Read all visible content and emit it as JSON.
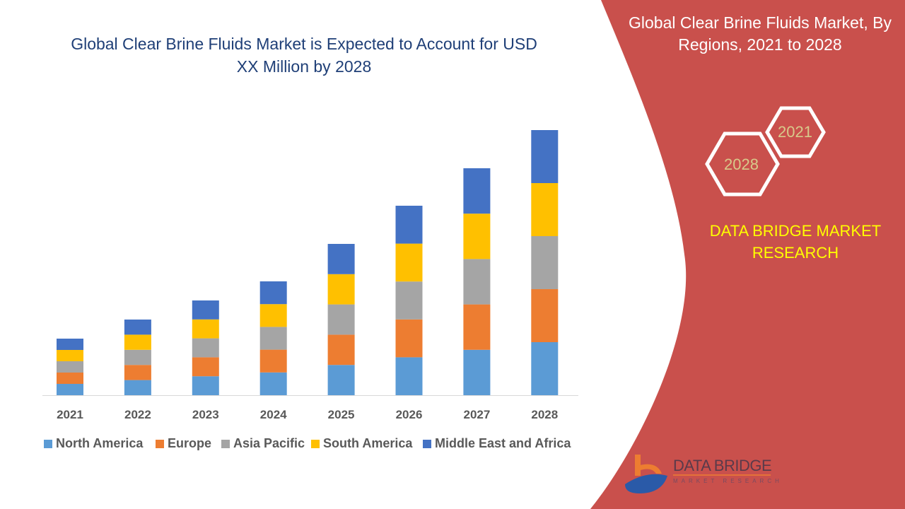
{
  "title": "Global Clear Brine Fluids Market is Expected to Account for USD XX Million by 2028",
  "panel": {
    "title": "Global Clear Brine Fluids Market, By Regions, 2021 to 2028",
    "hex_year_1": "2021",
    "hex_year_2": "2028",
    "brand": "DATA BRIDGE MARKET RESEARCH",
    "logo_text": "DATA BRIDGE",
    "logo_subtext": "MARKET RESEARCH",
    "color": "#C9504C"
  },
  "chart_data": {
    "type": "bar",
    "stacked": true,
    "categories": [
      "2021",
      "2022",
      "2023",
      "2024",
      "2025",
      "2026",
      "2027",
      "2028"
    ],
    "series": [
      {
        "name": "North America",
        "color": "#5B9BD5",
        "values": [
          16,
          21.4,
          26.8,
          32.2,
          42.8,
          53.6,
          64.2,
          75
        ]
      },
      {
        "name": "Europe",
        "color": "#ED7D31",
        "values": [
          16,
          21.4,
          26.8,
          32.2,
          42.8,
          53.6,
          64.2,
          75
        ]
      },
      {
        "name": "Asia Pacific",
        "color": "#A5A5A5",
        "values": [
          16,
          21.4,
          26.8,
          32.2,
          42.8,
          53.6,
          64.2,
          75
        ]
      },
      {
        "name": "South America",
        "color": "#FFC000",
        "values": [
          16,
          21.4,
          26.8,
          32.2,
          42.8,
          53.6,
          64.2,
          75
        ]
      },
      {
        "name": "Middle East and Africa",
        "color": "#4472C4",
        "values": [
          16,
          21.4,
          26.8,
          32.2,
          42.8,
          53.6,
          64.2,
          75
        ]
      }
    ],
    "ylim": [
      0,
      375
    ],
    "y_axis_shown": false,
    "grid": false,
    "legend": "bottom"
  }
}
